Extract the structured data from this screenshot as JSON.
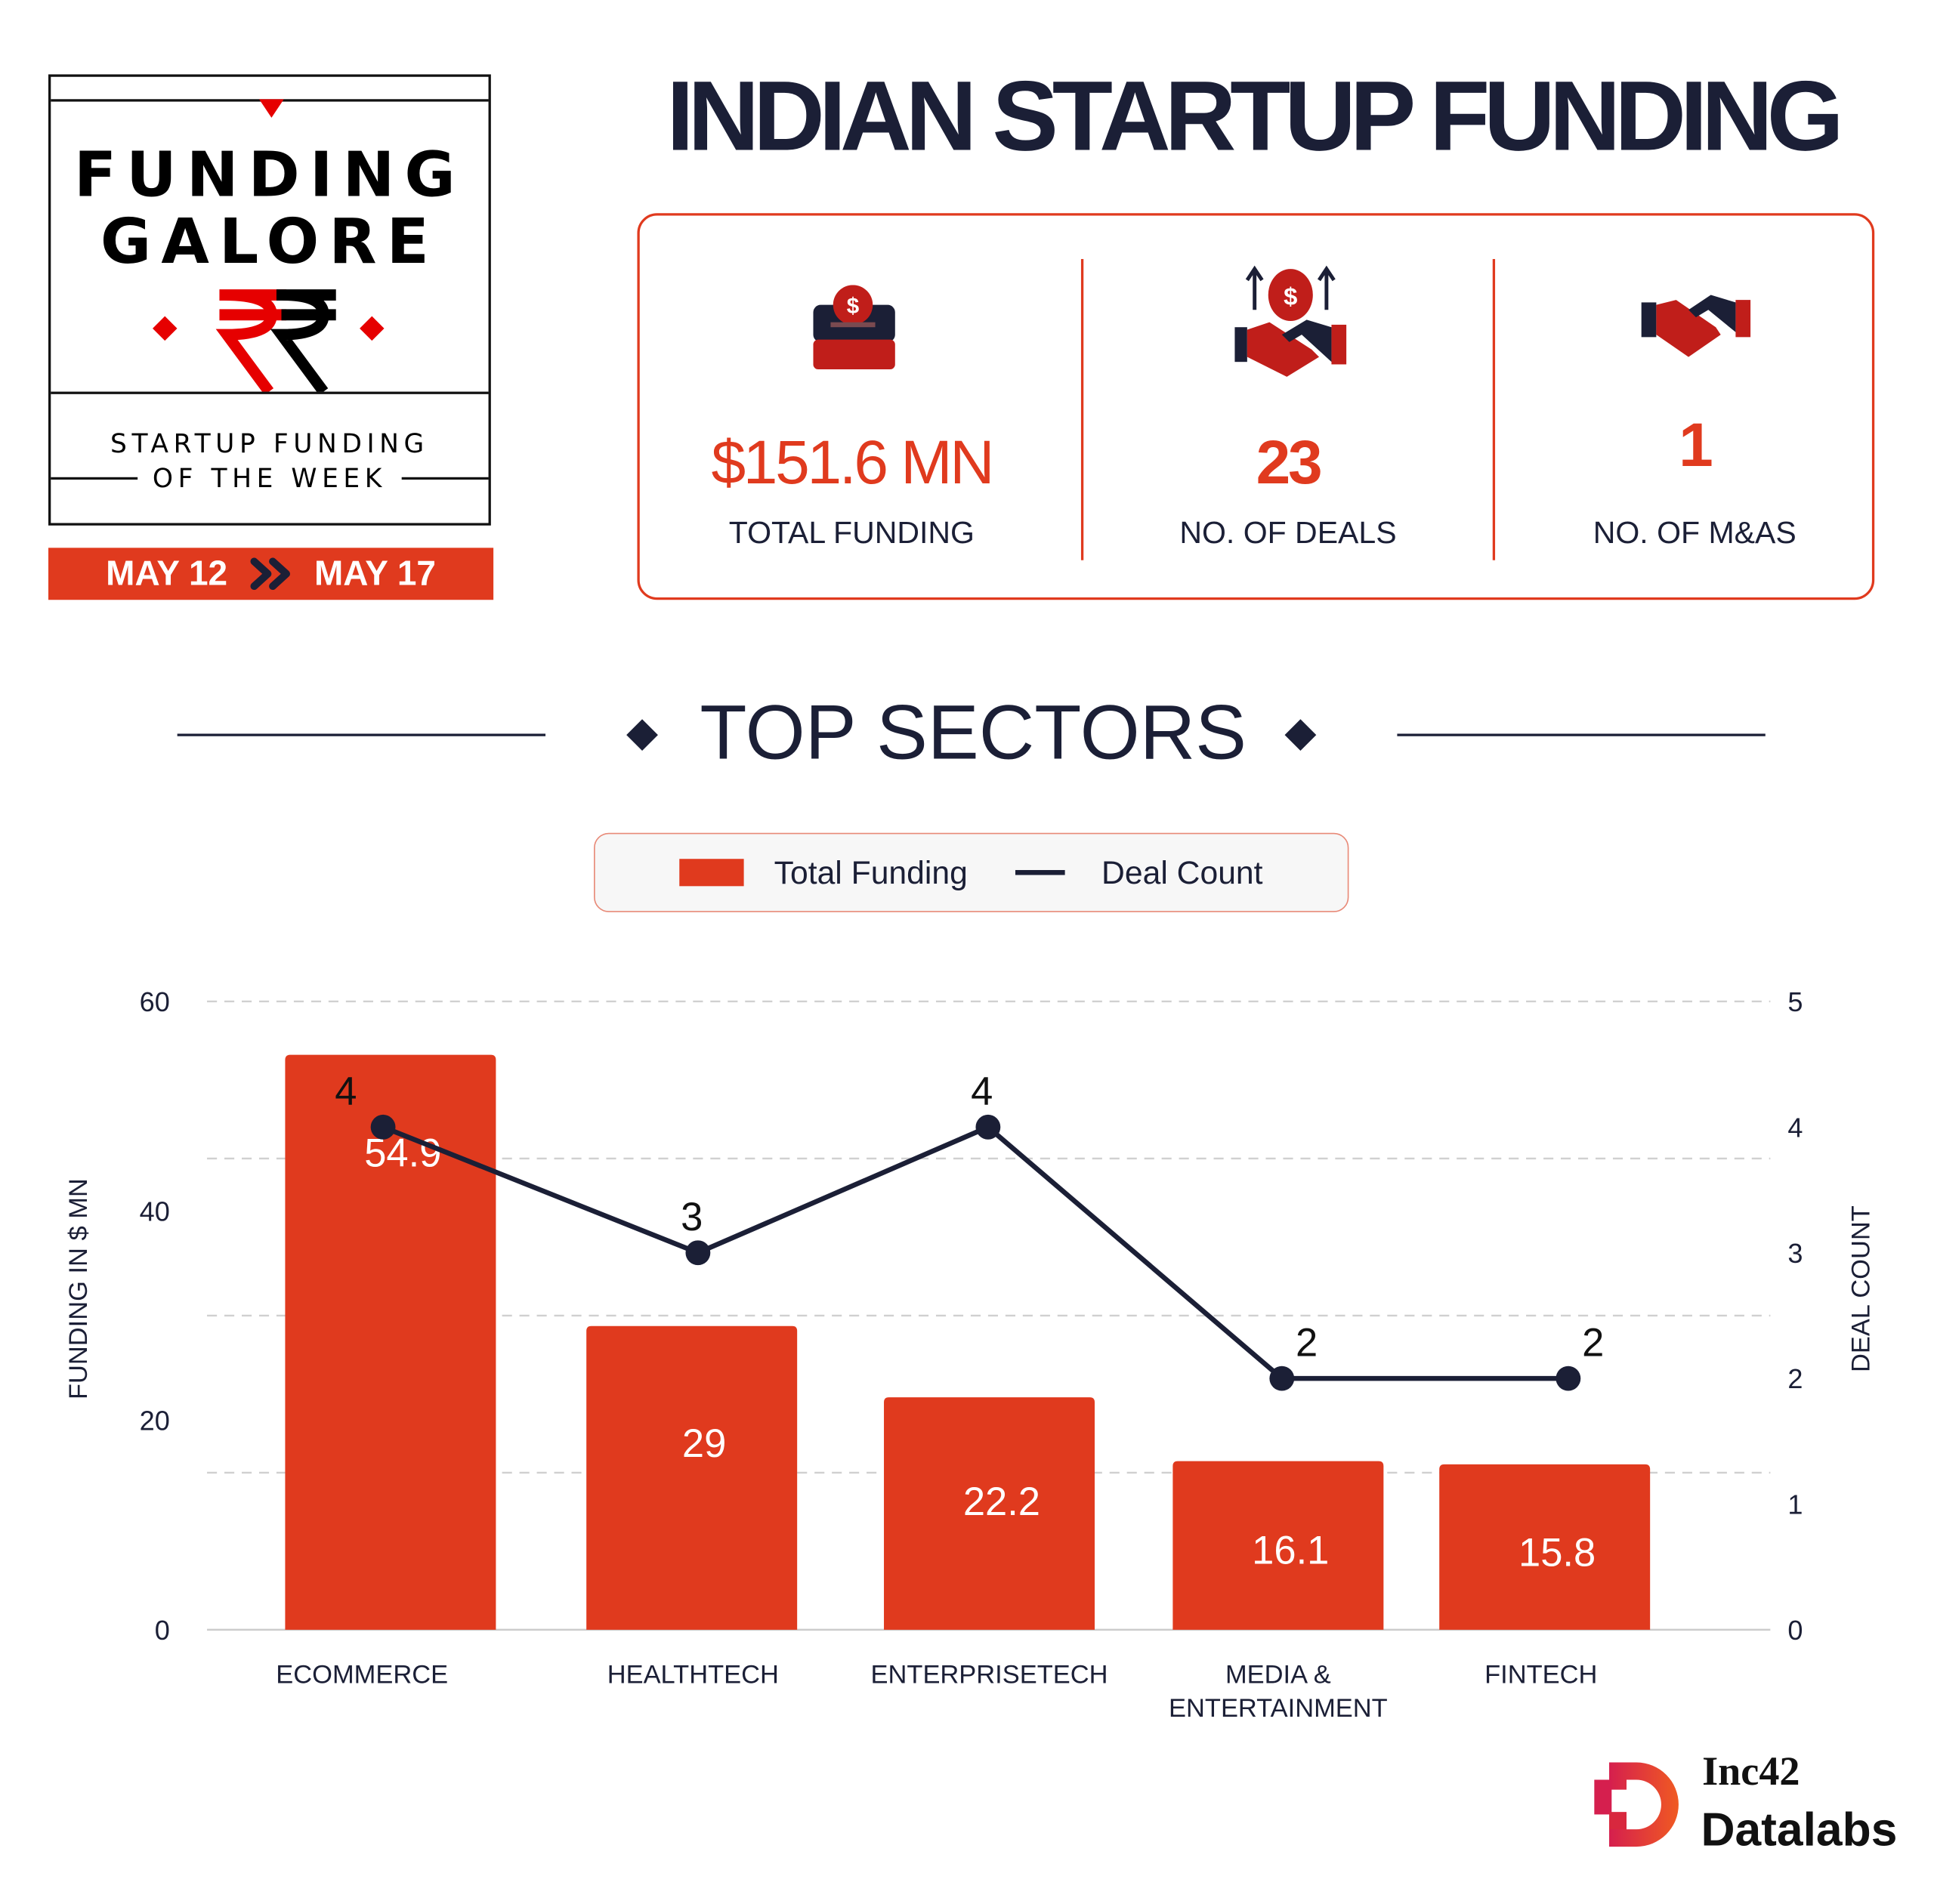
{
  "badge": {
    "line1": "FUNDING",
    "line2": "GALORE",
    "subtitle1": "STARTUP FUNDING",
    "subtitle2": "OF THE WEEK",
    "date_from": "MAY 12",
    "date_to": "MAY 17",
    "icon": "rupee-icon"
  },
  "header": {
    "title": "INDIAN STARTUP FUNDING"
  },
  "stats": [
    {
      "value": "$151.6 MN",
      "label": "TOTAL FUNDING",
      "icon": "money-box-icon"
    },
    {
      "value": "23",
      "label": "NO. OF DEALS",
      "icon": "handshake-money-icon"
    },
    {
      "value": "1",
      "label": "NO. OF M&AS",
      "icon": "handshake-icon"
    }
  ],
  "section": {
    "title": "TOP SECTORS"
  },
  "colors": {
    "accent": "#e03a1e",
    "navy": "#1b1f36"
  },
  "chart_data": {
    "type": "bar",
    "categories": [
      "ECOMMERCE",
      "HEALTHTECH",
      "ENTERPRISETECH",
      "MEDIA & ENTERTAINMENT",
      "FINTECH"
    ],
    "category_lines": [
      [
        "ECOMMERCE"
      ],
      [
        "HEALTHTECH"
      ],
      [
        "ENTERPRISETECH"
      ],
      [
        "MEDIA &",
        "ENTERTAINMENT"
      ],
      [
        "FINTECH"
      ]
    ],
    "series": [
      {
        "name": "Total Funding",
        "type": "bar",
        "axis": "left",
        "color": "#e03a1e",
        "values": [
          54.9,
          29,
          22.2,
          16.1,
          15.8
        ],
        "labels": [
          "54.9",
          "29",
          "22.2",
          "16.1",
          "15.8"
        ]
      },
      {
        "name": "Deal Count",
        "type": "line",
        "axis": "right",
        "color": "#1b1f36",
        "values": [
          4,
          3,
          4,
          2,
          2
        ],
        "labels": [
          "4",
          "3",
          "4",
          "2",
          "2"
        ]
      }
    ],
    "ylabel": "FUNDING IN $ MN",
    "ylabel_right": "DEAL COUNT",
    "ylim": [
      0,
      60
    ],
    "ylim_right": [
      0,
      5
    ],
    "yticks": [
      "0",
      "20",
      "40",
      "60"
    ],
    "yticks_right": [
      "0",
      "1",
      "2",
      "3",
      "4",
      "5"
    ],
    "grid": true,
    "legend": "top-center"
  },
  "footer": {
    "brand_top": "Inc42",
    "brand_bottom": "Datalabs"
  }
}
